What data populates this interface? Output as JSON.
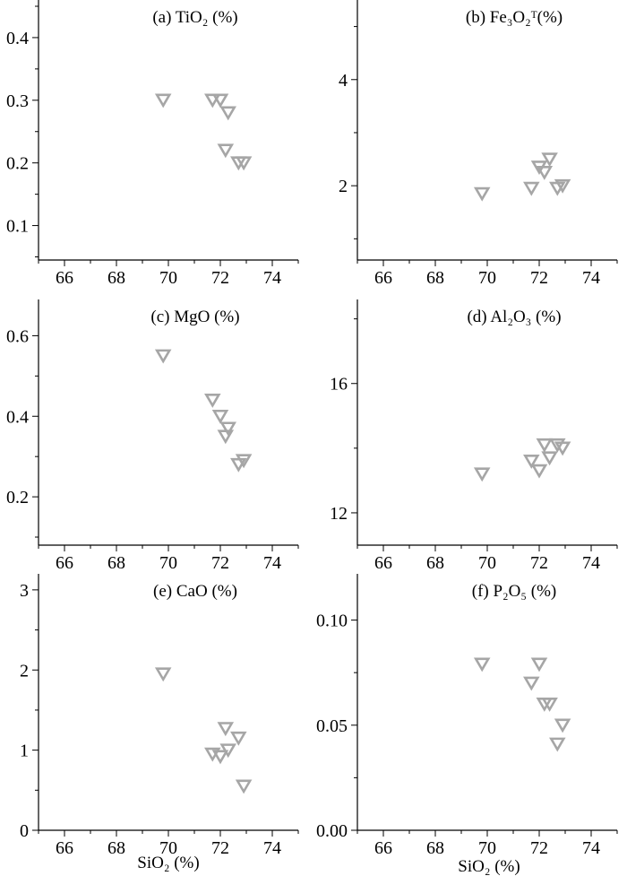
{
  "figure": {
    "x_axis_titles": [
      "SiO₂ (%)",
      "SiO₂ (%)"
    ],
    "marker_color": "#a6a6a6",
    "marker_shape": "down-triangle-outline"
  },
  "chart_data": [
    {
      "type": "scatter",
      "panel": "a",
      "title": "(a) TiO₂ (%)",
      "xlabel": "",
      "ylabel": "",
      "xlim": [
        65,
        75
      ],
      "ylim": [
        0.045,
        0.46
      ],
      "xticks": [
        "66",
        "68",
        "70",
        "72",
        "74"
      ],
      "yticks": [
        "0.1",
        "0.2",
        "0.3",
        "0.4"
      ],
      "points": [
        [
          69.8,
          0.3
        ],
        [
          71.7,
          0.3
        ],
        [
          72.0,
          0.3
        ],
        [
          72.3,
          0.28
        ],
        [
          72.2,
          0.22
        ],
        [
          72.7,
          0.2
        ],
        [
          72.9,
          0.2
        ]
      ]
    },
    {
      "type": "scatter",
      "panel": "b",
      "title": "(b) Fe₃O₂ᵀ(%)",
      "xlabel": "",
      "ylabel": "",
      "xlim": [
        65,
        75
      ],
      "ylim": [
        0.6,
        5.5
      ],
      "xticks": [
        "66",
        "68",
        "70",
        "72",
        "74"
      ],
      "yticks": [
        "2",
        "4"
      ],
      "points": [
        [
          69.8,
          1.85
        ],
        [
          71.7,
          1.95
        ],
        [
          72.0,
          2.35
        ],
        [
          72.2,
          2.25
        ],
        [
          72.4,
          2.5
        ],
        [
          72.7,
          1.95
        ],
        [
          72.9,
          2.0
        ]
      ]
    },
    {
      "type": "scatter",
      "panel": "c",
      "title": "(c) MgO (%)",
      "xlabel": "",
      "ylabel": "",
      "xlim": [
        65,
        75
      ],
      "ylim": [
        0.08,
        0.69
      ],
      "xticks": [
        "66",
        "68",
        "70",
        "72",
        "74"
      ],
      "yticks": [
        "0.2",
        "0.4",
        "0.6"
      ],
      "points": [
        [
          69.8,
          0.55
        ],
        [
          71.7,
          0.44
        ],
        [
          72.0,
          0.4
        ],
        [
          72.3,
          0.37
        ],
        [
          72.2,
          0.35
        ],
        [
          72.7,
          0.28
        ],
        [
          72.9,
          0.29
        ]
      ]
    },
    {
      "type": "scatter",
      "panel": "d",
      "title": "(d) Al₂O₃ (%)",
      "xlabel": "",
      "ylabel": "",
      "xlim": [
        65,
        75
      ],
      "ylim": [
        11.0,
        18.6
      ],
      "xticks": [
        "66",
        "68",
        "70",
        "72",
        "74"
      ],
      "yticks": [
        "12",
        "16"
      ],
      "points": [
        [
          69.8,
          13.2
        ],
        [
          71.7,
          13.6
        ],
        [
          72.0,
          13.3
        ],
        [
          72.2,
          14.1
        ],
        [
          72.4,
          13.7
        ],
        [
          72.7,
          14.1
        ],
        [
          72.9,
          14.0
        ]
      ]
    },
    {
      "type": "scatter",
      "panel": "e",
      "title": "(e) CaO (%)",
      "xlabel": "",
      "ylabel": "",
      "xlim": [
        65,
        75
      ],
      "ylim": [
        0,
        3.2
      ],
      "xticks": [
        "66",
        "68",
        "70",
        "72",
        "74"
      ],
      "yticks": [
        "0",
        "1",
        "2",
        "3"
      ],
      "points": [
        [
          69.8,
          1.95
        ],
        [
          71.7,
          0.95
        ],
        [
          72.0,
          0.92
        ],
        [
          72.2,
          1.27
        ],
        [
          72.3,
          1.0
        ],
        [
          72.7,
          1.15
        ],
        [
          72.9,
          0.55
        ]
      ]
    },
    {
      "type": "scatter",
      "panel": "f",
      "title": "(f) P₂O₅ (%)",
      "xlabel": "",
      "ylabel": "",
      "xlim": [
        65,
        75
      ],
      "ylim": [
        0,
        0.122
      ],
      "xticks": [
        "66",
        "68",
        "70",
        "72",
        "74"
      ],
      "yticks": [
        "0.00",
        "0.05",
        "0.10"
      ],
      "points": [
        [
          69.8,
          0.079
        ],
        [
          71.7,
          0.07
        ],
        [
          72.0,
          0.079
        ],
        [
          72.2,
          0.06
        ],
        [
          72.4,
          0.06
        ],
        [
          72.7,
          0.041
        ],
        [
          72.9,
          0.05
        ]
      ]
    }
  ]
}
